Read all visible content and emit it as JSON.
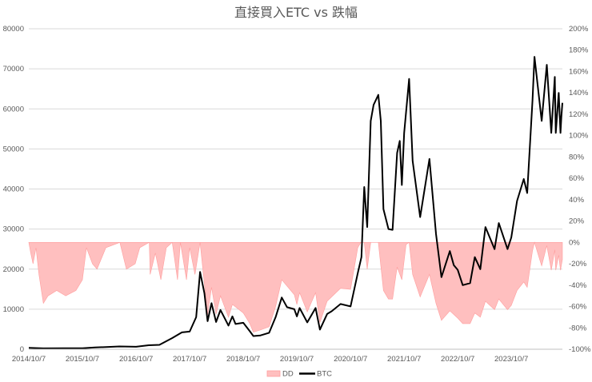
{
  "chart_data": {
    "type": "line",
    "title": "直接買入ETC vs 跌幅",
    "xlabel": "",
    "ylabel": "",
    "y_left_ticks": [
      "0",
      "10000",
      "20000",
      "30000",
      "40000",
      "50000",
      "60000",
      "70000",
      "80000"
    ],
    "y_right_ticks": [
      "-100%",
      "-80%",
      "-60%",
      "-40%",
      "-20%",
      "0%",
      "20%",
      "40%",
      "60%",
      "80%",
      "100%",
      "120%",
      "140%",
      "160%",
      "180%",
      "200%"
    ],
    "x_ticks": [
      "2014/10/7",
      "2015/10/7",
      "2016/10/7",
      "2017/10/7",
      "2018/10/7",
      "2019/10/7",
      "2020/10/7",
      "2021/10/7",
      "2022/10/7",
      "2023/10/7"
    ],
    "ylim_left": [
      0,
      80000
    ],
    "ylim_right": [
      -1.0,
      2.0
    ],
    "grid": true,
    "legend_position": "bottom",
    "colors": {
      "btc": "#000000",
      "dd_fill": "#ffbfbf",
      "dd_stroke": "#ff9d9d"
    },
    "series": [
      {
        "name": "BTC",
        "axis": "left",
        "points": [
          [
            "2014-10-07",
            330
          ],
          [
            "2015-01-15",
            210
          ],
          [
            "2015-06-01",
            230
          ],
          [
            "2015-10-07",
            250
          ],
          [
            "2016-01-01",
            430
          ],
          [
            "2016-06-15",
            700
          ],
          [
            "2016-10-07",
            615
          ],
          [
            "2017-01-01",
            1000
          ],
          [
            "2017-03-15",
            1100
          ],
          [
            "2017-06-10",
            2800
          ],
          [
            "2017-08-15",
            4200
          ],
          [
            "2017-10-07",
            4400
          ],
          [
            "2017-11-20",
            8000
          ],
          [
            "2017-12-17",
            19300
          ],
          [
            "2018-01-15",
            14000
          ],
          [
            "2018-02-06",
            7000
          ],
          [
            "2018-03-05",
            11500
          ],
          [
            "2018-04-05",
            6800
          ],
          [
            "2018-05-05",
            9800
          ],
          [
            "2018-06-28",
            5900
          ],
          [
            "2018-07-25",
            8200
          ],
          [
            "2018-08-15",
            6300
          ],
          [
            "2018-10-07",
            6600
          ],
          [
            "2018-11-20",
            4500
          ],
          [
            "2018-12-15",
            3300
          ],
          [
            "2019-02-01",
            3450
          ],
          [
            "2019-04-01",
            4100
          ],
          [
            "2019-05-15",
            8000
          ],
          [
            "2019-06-26",
            12900
          ],
          [
            "2019-08-01",
            10500
          ],
          [
            "2019-09-20",
            10000
          ],
          [
            "2019-10-07",
            8200
          ],
          [
            "2019-10-26",
            10300
          ],
          [
            "2019-12-17",
            6700
          ],
          [
            "2020-02-12",
            10300
          ],
          [
            "2020-03-12",
            4900
          ],
          [
            "2020-04-30",
            8800
          ],
          [
            "2020-06-01",
            9500
          ],
          [
            "2020-07-31",
            11300
          ],
          [
            "2020-10-07",
            10700
          ],
          [
            "2020-11-25",
            19000
          ],
          [
            "2020-12-20",
            23000
          ],
          [
            "2021-01-08",
            40500
          ],
          [
            "2021-01-28",
            30500
          ],
          [
            "2021-02-21",
            57000
          ],
          [
            "2021-03-13",
            61000
          ],
          [
            "2021-04-14",
            63500
          ],
          [
            "2021-05-01",
            57000
          ],
          [
            "2021-05-19",
            35000
          ],
          [
            "2021-06-22",
            30000
          ],
          [
            "2021-07-20",
            29800
          ],
          [
            "2021-08-20",
            49000
          ],
          [
            "2021-09-07",
            52000
          ],
          [
            "2021-09-21",
            41000
          ],
          [
            "2021-10-07",
            54000
          ],
          [
            "2021-11-10",
            67500
          ],
          [
            "2021-12-04",
            47000
          ],
          [
            "2022-01-24",
            33000
          ],
          [
            "2022-03-28",
            47500
          ],
          [
            "2022-05-12",
            28800
          ],
          [
            "2022-06-18",
            18000
          ],
          [
            "2022-08-14",
            24500
          ],
          [
            "2022-09-10",
            21000
          ],
          [
            "2022-10-07",
            19800
          ],
          [
            "2022-11-10",
            16000
          ],
          [
            "2022-12-30",
            16500
          ],
          [
            "2023-01-31",
            23000
          ],
          [
            "2023-03-10",
            20000
          ],
          [
            "2023-04-14",
            30500
          ],
          [
            "2023-06-15",
            25000
          ],
          [
            "2023-07-14",
            31500
          ],
          [
            "2023-09-11",
            25000
          ],
          [
            "2023-10-07",
            27900
          ],
          [
            "2023-11-15",
            37000
          ],
          [
            "2023-12-31",
            42500
          ],
          [
            "2024-01-23",
            39000
          ],
          [
            "2024-02-28",
            62000
          ],
          [
            "2024-03-13",
            73000
          ],
          [
            "2024-05-01",
            57000
          ],
          [
            "2024-06-05",
            71000
          ],
          [
            "2024-07-05",
            54000
          ],
          [
            "2024-07-29",
            68000
          ],
          [
            "2024-08-05",
            54000
          ],
          [
            "2024-08-25",
            64000
          ],
          [
            "2024-09-06",
            54000
          ],
          [
            "2024-09-12",
            58000
          ],
          [
            "2024-09-19",
            61500
          ]
        ]
      },
      {
        "name": "DD",
        "axis": "right",
        "points": [
          [
            "2014-10-07",
            0.0
          ],
          [
            "2014-10-20",
            -0.1
          ],
          [
            "2014-11-05",
            -0.2
          ],
          [
            "2014-11-25",
            -0.05
          ],
          [
            "2014-12-15",
            -0.3
          ],
          [
            "2015-01-14",
            -0.57
          ],
          [
            "2015-02-15",
            -0.5
          ],
          [
            "2015-04-15",
            -0.45
          ],
          [
            "2015-06-15",
            -0.5
          ],
          [
            "2015-08-24",
            -0.45
          ],
          [
            "2015-10-07",
            -0.35
          ],
          [
            "2015-11-04",
            -0.05
          ],
          [
            "2015-12-15",
            -0.2
          ],
          [
            "2016-01-15",
            -0.25
          ],
          [
            "2016-03-15",
            -0.05
          ],
          [
            "2016-06-18",
            0.0
          ],
          [
            "2016-08-02",
            -0.25
          ],
          [
            "2016-10-01",
            -0.2
          ],
          [
            "2016-11-01",
            -0.05
          ],
          [
            "2017-01-05",
            0.0
          ],
          [
            "2017-01-11",
            -0.3
          ],
          [
            "2017-02-15",
            -0.1
          ],
          [
            "2017-03-25",
            -0.35
          ],
          [
            "2017-05-01",
            -0.05
          ],
          [
            "2017-06-10",
            0.0
          ],
          [
            "2017-07-16",
            -0.35
          ],
          [
            "2017-08-05",
            0.0
          ],
          [
            "2017-09-15",
            -0.35
          ],
          [
            "2017-10-07",
            -0.05
          ],
          [
            "2017-11-12",
            -0.3
          ],
          [
            "2017-12-17",
            0.0
          ],
          [
            "2018-02-06",
            -0.68
          ],
          [
            "2018-03-05",
            -0.42
          ],
          [
            "2018-04-05",
            -0.67
          ],
          [
            "2018-05-05",
            -0.5
          ],
          [
            "2018-06-28",
            -0.7
          ],
          [
            "2018-07-25",
            -0.58
          ],
          [
            "2018-10-07",
            -0.66
          ],
          [
            "2018-11-20",
            -0.76
          ],
          [
            "2018-12-15",
            -0.84
          ],
          [
            "2019-02-01",
            -0.82
          ],
          [
            "2019-04-01",
            -0.79
          ],
          [
            "2019-05-15",
            -0.6
          ],
          [
            "2019-06-26",
            -0.35
          ],
          [
            "2019-09-20",
            -0.49
          ],
          [
            "2019-10-07",
            -0.58
          ],
          [
            "2019-10-26",
            -0.47
          ],
          [
            "2019-12-17",
            -0.65
          ],
          [
            "2020-02-12",
            -0.47
          ],
          [
            "2020-03-12",
            -0.75
          ],
          [
            "2020-04-30",
            -0.55
          ],
          [
            "2020-07-31",
            -0.43
          ],
          [
            "2020-10-07",
            -0.44
          ],
          [
            "2020-11-25",
            -0.05
          ],
          [
            "2020-12-16",
            0.0
          ],
          [
            "2021-01-08",
            0.0
          ],
          [
            "2021-01-28",
            -0.25
          ],
          [
            "2021-02-21",
            0.0
          ],
          [
            "2021-04-14",
            0.0
          ],
          [
            "2021-05-19",
            -0.45
          ],
          [
            "2021-06-22",
            -0.53
          ],
          [
            "2021-07-20",
            -0.53
          ],
          [
            "2021-08-20",
            -0.23
          ],
          [
            "2021-09-21",
            -0.35
          ],
          [
            "2021-10-20",
            -0.02
          ],
          [
            "2021-11-10",
            0.0
          ],
          [
            "2021-12-04",
            -0.3
          ],
          [
            "2022-01-24",
            -0.51
          ],
          [
            "2022-03-28",
            -0.3
          ],
          [
            "2022-05-12",
            -0.57
          ],
          [
            "2022-06-18",
            -0.73
          ],
          [
            "2022-08-14",
            -0.64
          ],
          [
            "2022-10-07",
            -0.71
          ],
          [
            "2022-11-10",
            -0.76
          ],
          [
            "2022-12-30",
            -0.76
          ],
          [
            "2023-01-31",
            -0.66
          ],
          [
            "2023-03-10",
            -0.7
          ],
          [
            "2023-04-14",
            -0.55
          ],
          [
            "2023-06-15",
            -0.63
          ],
          [
            "2023-07-14",
            -0.53
          ],
          [
            "2023-09-11",
            -0.63
          ],
          [
            "2023-10-07",
            -0.59
          ],
          [
            "2023-11-15",
            -0.45
          ],
          [
            "2023-12-31",
            -0.37
          ],
          [
            "2024-01-23",
            -0.42
          ],
          [
            "2024-02-28",
            -0.08
          ],
          [
            "2024-03-13",
            0.0
          ],
          [
            "2024-04-15",
            -0.15
          ],
          [
            "2024-05-01",
            -0.22
          ],
          [
            "2024-06-05",
            -0.03
          ],
          [
            "2024-07-05",
            -0.26
          ],
          [
            "2024-07-29",
            -0.07
          ],
          [
            "2024-08-05",
            -0.26
          ],
          [
            "2024-08-25",
            -0.12
          ],
          [
            "2024-09-06",
            -0.26
          ],
          [
            "2024-09-19",
            -0.16
          ]
        ]
      }
    ]
  }
}
